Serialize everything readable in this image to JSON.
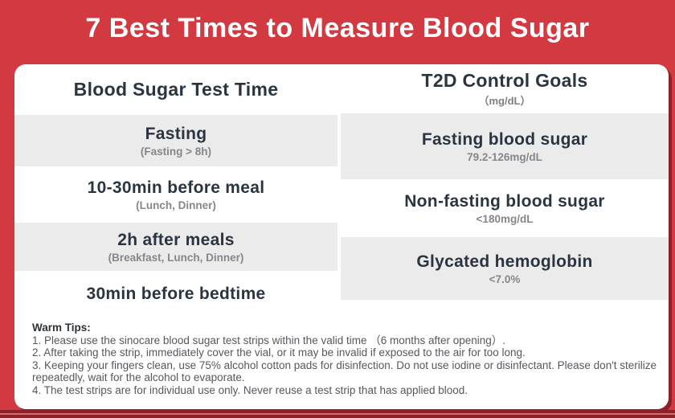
{
  "title": "7 Best Times to Measure Blood Sugar",
  "left_column": {
    "header": "Blood Sugar Test Time",
    "rows": [
      {
        "main": "Fasting",
        "sub": "(Fasting > 8h)",
        "shaded": true
      },
      {
        "main": "10-30min before meal",
        "sub": "(Lunch, Dinner)",
        "shaded": false
      },
      {
        "main": "2h after meals",
        "sub": "(Breakfast, Lunch, Dinner)",
        "shaded": true
      },
      {
        "main": "30min before bedtime",
        "sub": "",
        "shaded": false
      }
    ]
  },
  "right_column": {
    "header": "T2D Control Goals",
    "header_sub": "（mg/dL）",
    "rows": [
      {
        "main": "Fasting blood sugar",
        "sub": "79.2-126mg/dL",
        "shaded": true
      },
      {
        "main": "Non-fasting blood sugar",
        "sub": "<180mg/dL",
        "shaded": false
      },
      {
        "main": "Glycated hemoglobin",
        "sub": "<7.0%",
        "shaded": true
      }
    ]
  },
  "tips": {
    "heading": "Warm Tips:",
    "items": [
      "1. Please use the sinocare blood sugar test strips within the valid time （6 months after opening）.",
      "2. After taking the strip, immediately cover the vial, or it may be invalid if exposed to the air for too long.",
      "3. Keeping your fingers clean, use 75% alcohol cotton pads for disinfection. Do not use iodine or disinfectant. Please don't sterilize repeatedly, wait for the alcohol to evaporate.",
      "4. The test strips are for individual use only. Never reuse a test strip that has applied blood."
    ]
  },
  "colors": {
    "background_red": "#D23940",
    "dark_red_accent": "#8D2127",
    "band_highlight": "#CE6E72",
    "heading_text": "#2A3541",
    "sub_text_gray": "#84878C",
    "shaded_row": "#EBEBEB",
    "card_white": "#FFFFFF"
  }
}
